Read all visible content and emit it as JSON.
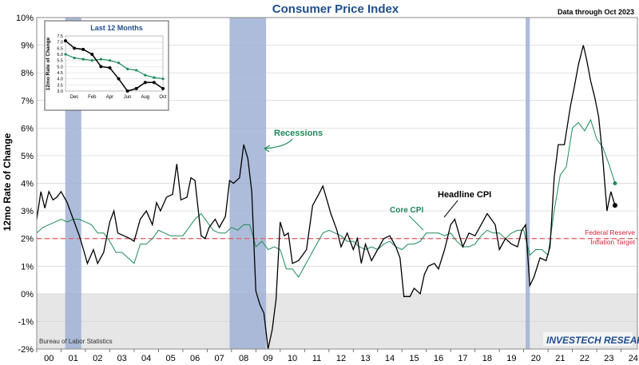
{
  "colors": {
    "title": "#1f4e8c",
    "headline": "#000000",
    "core": "#1e8a5a",
    "recession": "#9fb0d4",
    "negative_zone": "#e6e6e6",
    "target": "#e06666",
    "target_text": "#d6223a",
    "grid": "#d0d0d0"
  },
  "chart_data": [
    {
      "type": "line",
      "title": "Consumer Price Index",
      "subtitle": "Data through Oct 2023",
      "ylabel": "12mo Rate of Change",
      "xlabel": "",
      "ylim": [
        -2,
        10
      ],
      "xlim": [
        2000,
        2024.67
      ],
      "y_ticks": [
        "-2%",
        "-1%",
        "0%",
        "1%",
        "2%",
        "3%",
        "4%",
        "5%",
        "6%",
        "7%",
        "8%",
        "9%",
        "10%"
      ],
      "y_tick_values": [
        -2,
        -1,
        0,
        1,
        2,
        3,
        4,
        5,
        6,
        7,
        8,
        9,
        10
      ],
      "x_ticks": [
        "00",
        "01",
        "02",
        "03",
        "04",
        "05",
        "06",
        "07",
        "08",
        "09",
        "10",
        "11",
        "12",
        "13",
        "14",
        "15",
        "16",
        "17",
        "18",
        "19",
        "20",
        "21",
        "22",
        "23",
        "24"
      ],
      "recessions": [
        [
          2001.17,
          2001.83
        ],
        [
          2007.92,
          2009.42
        ],
        [
          2020.08,
          2020.25
        ]
      ],
      "target": {
        "value": 2.0,
        "label_line1": "Federal Reserve",
        "label_line2": "Inflation Target"
      },
      "annotations": {
        "recessions": "Recessions",
        "headline": "Headline CPI",
        "core": "Core CPI"
      },
      "source": "Bureau of Labor Statistics",
      "logo": "INVESTECH RESEARCH",
      "series": [
        {
          "name": "Headline CPI",
          "x": [
            2000.0,
            2000.17,
            2000.33,
            2000.5,
            2000.67,
            2000.83,
            2001.0,
            2001.25,
            2001.5,
            2001.75,
            2001.92,
            2002.08,
            2002.33,
            2002.5,
            2002.75,
            2003.0,
            2003.17,
            2003.33,
            2003.58,
            2003.83,
            2004.0,
            2004.25,
            2004.5,
            2004.75,
            2004.92,
            2005.08,
            2005.33,
            2005.58,
            2005.75,
            2005.92,
            2006.17,
            2006.33,
            2006.5,
            2006.75,
            2006.92,
            2007.08,
            2007.33,
            2007.5,
            2007.75,
            2007.92,
            2008.08,
            2008.33,
            2008.5,
            2008.67,
            2008.83,
            2009.0,
            2009.17,
            2009.33,
            2009.5,
            2009.67,
            2009.83,
            2010.0,
            2010.17,
            2010.33,
            2010.5,
            2010.75,
            2010.92,
            2011.08,
            2011.33,
            2011.58,
            2011.75,
            2011.92,
            2012.08,
            2012.33,
            2012.5,
            2012.75,
            2013.0,
            2013.17,
            2013.33,
            2013.5,
            2013.75,
            2014.0,
            2014.25,
            2014.5,
            2014.75,
            2014.92,
            2015.08,
            2015.33,
            2015.5,
            2015.75,
            2015.92,
            2016.08,
            2016.33,
            2016.5,
            2016.75,
            2017.0,
            2017.17,
            2017.33,
            2017.5,
            2017.75,
            2018.0,
            2018.25,
            2018.5,
            2018.67,
            2018.83,
            2019.0,
            2019.25,
            2019.5,
            2019.75,
            2019.92,
            2020.08,
            2020.25,
            2020.42,
            2020.67,
            2020.92,
            2021.08,
            2021.25,
            2021.42,
            2021.67,
            2021.92,
            2022.08,
            2022.25,
            2022.45,
            2022.58,
            2022.75,
            2022.92,
            2023.08,
            2023.25,
            2023.42,
            2023.58,
            2023.75
          ],
          "values": [
            2.7,
            3.7,
            3.1,
            3.7,
            3.4,
            3.5,
            3.7,
            3.3,
            2.7,
            2.1,
            1.6,
            1.1,
            1.6,
            1.1,
            1.5,
            2.6,
            3.0,
            2.2,
            2.1,
            2.0,
            1.9,
            2.7,
            3.0,
            2.5,
            3.3,
            3.0,
            3.5,
            3.6,
            4.7,
            3.4,
            3.5,
            4.2,
            4.1,
            2.1,
            2.0,
            2.4,
            2.7,
            2.4,
            2.8,
            4.1,
            4.0,
            4.2,
            5.4,
            4.9,
            3.7,
            0.1,
            -0.4,
            -0.7,
            -2.0,
            -1.3,
            -0.2,
            2.6,
            2.1,
            2.2,
            1.1,
            1.2,
            1.4,
            1.6,
            3.2,
            3.6,
            3.9,
            3.4,
            2.9,
            2.3,
            1.7,
            2.2,
            1.6,
            2.0,
            1.1,
            1.8,
            1.2,
            1.6,
            2.0,
            2.1,
            1.7,
            1.3,
            -0.1,
            -0.1,
            0.2,
            0.0,
            0.7,
            1.0,
            1.1,
            0.9,
            1.6,
            2.5,
            2.7,
            2.2,
            1.7,
            2.2,
            2.1,
            2.5,
            2.9,
            2.7,
            2.5,
            1.6,
            2.0,
            1.8,
            1.7,
            2.3,
            2.5,
            0.3,
            0.6,
            1.3,
            1.2,
            1.7,
            4.2,
            5.4,
            5.4,
            6.8,
            7.5,
            8.3,
            9.0,
            8.5,
            7.7,
            7.1,
            6.4,
            4.9,
            3.0,
            3.7,
            3.2
          ]
        },
        {
          "name": "Core CPI",
          "x": [
            2000.0,
            2000.25,
            2000.5,
            2000.75,
            2001.0,
            2001.25,
            2001.5,
            2001.75,
            2002.0,
            2002.25,
            2002.5,
            2002.75,
            2003.0,
            2003.25,
            2003.5,
            2003.75,
            2004.0,
            2004.25,
            2004.5,
            2004.75,
            2005.0,
            2005.25,
            2005.5,
            2005.75,
            2006.0,
            2006.25,
            2006.5,
            2006.75,
            2007.0,
            2007.25,
            2007.5,
            2007.75,
            2008.0,
            2008.25,
            2008.5,
            2008.75,
            2009.0,
            2009.25,
            2009.5,
            2009.75,
            2010.0,
            2010.25,
            2010.5,
            2010.75,
            2011.0,
            2011.25,
            2011.5,
            2011.75,
            2012.0,
            2012.25,
            2012.5,
            2012.75,
            2013.0,
            2013.25,
            2013.5,
            2013.75,
            2014.0,
            2014.25,
            2014.5,
            2014.75,
            2015.0,
            2015.25,
            2015.5,
            2015.75,
            2016.0,
            2016.25,
            2016.5,
            2016.75,
            2017.0,
            2017.25,
            2017.5,
            2017.75,
            2018.0,
            2018.25,
            2018.5,
            2018.75,
            2019.0,
            2019.25,
            2019.5,
            2019.75,
            2020.0,
            2020.25,
            2020.5,
            2020.75,
            2021.0,
            2021.25,
            2021.5,
            2021.75,
            2022.0,
            2022.25,
            2022.5,
            2022.75,
            2023.0,
            2023.25,
            2023.5,
            2023.75
          ],
          "values": [
            2.2,
            2.4,
            2.5,
            2.6,
            2.7,
            2.6,
            2.7,
            2.7,
            2.6,
            2.5,
            2.2,
            2.2,
            1.9,
            1.5,
            1.5,
            1.3,
            1.1,
            1.8,
            1.8,
            2.0,
            2.3,
            2.2,
            2.1,
            2.1,
            2.1,
            2.4,
            2.7,
            2.9,
            2.6,
            2.3,
            2.2,
            2.2,
            2.4,
            2.3,
            2.5,
            2.5,
            1.7,
            1.9,
            1.6,
            1.7,
            1.6,
            0.9,
            0.9,
            0.6,
            1.0,
            1.4,
            1.8,
            2.2,
            2.3,
            2.2,
            2.1,
            1.9,
            1.9,
            1.7,
            1.6,
            1.7,
            1.6,
            1.8,
            1.9,
            1.7,
            1.6,
            1.8,
            1.8,
            1.9,
            2.2,
            2.2,
            2.2,
            2.1,
            2.2,
            1.9,
            1.7,
            1.7,
            1.8,
            2.1,
            2.3,
            2.2,
            2.2,
            2.0,
            2.2,
            2.3,
            2.3,
            1.4,
            1.6,
            1.6,
            1.4,
            3.0,
            4.3,
            4.6,
            6.0,
            6.2,
            5.9,
            6.3,
            5.6,
            5.3,
            4.7,
            4.0
          ]
        }
      ]
    },
    {
      "type": "line",
      "title": "Last 12 Months",
      "ylabel": "12mo Rate of Change",
      "ylim": [
        3.0,
        7.5
      ],
      "y_ticks": [
        "7.5",
        "7.0",
        "6.5",
        "6.0",
        "5.5",
        "5.0",
        "4.5",
        "4.0",
        "3.5",
        "3.0"
      ],
      "y_tick_values": [
        7.5,
        7.0,
        6.5,
        6.0,
        5.5,
        5.0,
        4.5,
        4.0,
        3.5,
        3.0
      ],
      "x_ticks": [
        "Dec",
        "Feb",
        "Apr",
        "Jun",
        "Aug",
        "Oct"
      ],
      "months": [
        "Nov",
        "Dec",
        "Jan",
        "Feb",
        "Mar",
        "Apr",
        "May",
        "Jun",
        "Jul",
        "Aug",
        "Sep",
        "Oct"
      ],
      "series": [
        {
          "name": "Headline CPI",
          "values": [
            7.1,
            6.5,
            6.4,
            6.0,
            5.0,
            4.9,
            4.0,
            3.0,
            3.2,
            3.7,
            3.7,
            3.2
          ]
        },
        {
          "name": "Core CPI",
          "values": [
            6.0,
            5.7,
            5.6,
            5.5,
            5.6,
            5.5,
            5.3,
            4.8,
            4.7,
            4.3,
            4.1,
            4.0
          ]
        }
      ]
    }
  ]
}
